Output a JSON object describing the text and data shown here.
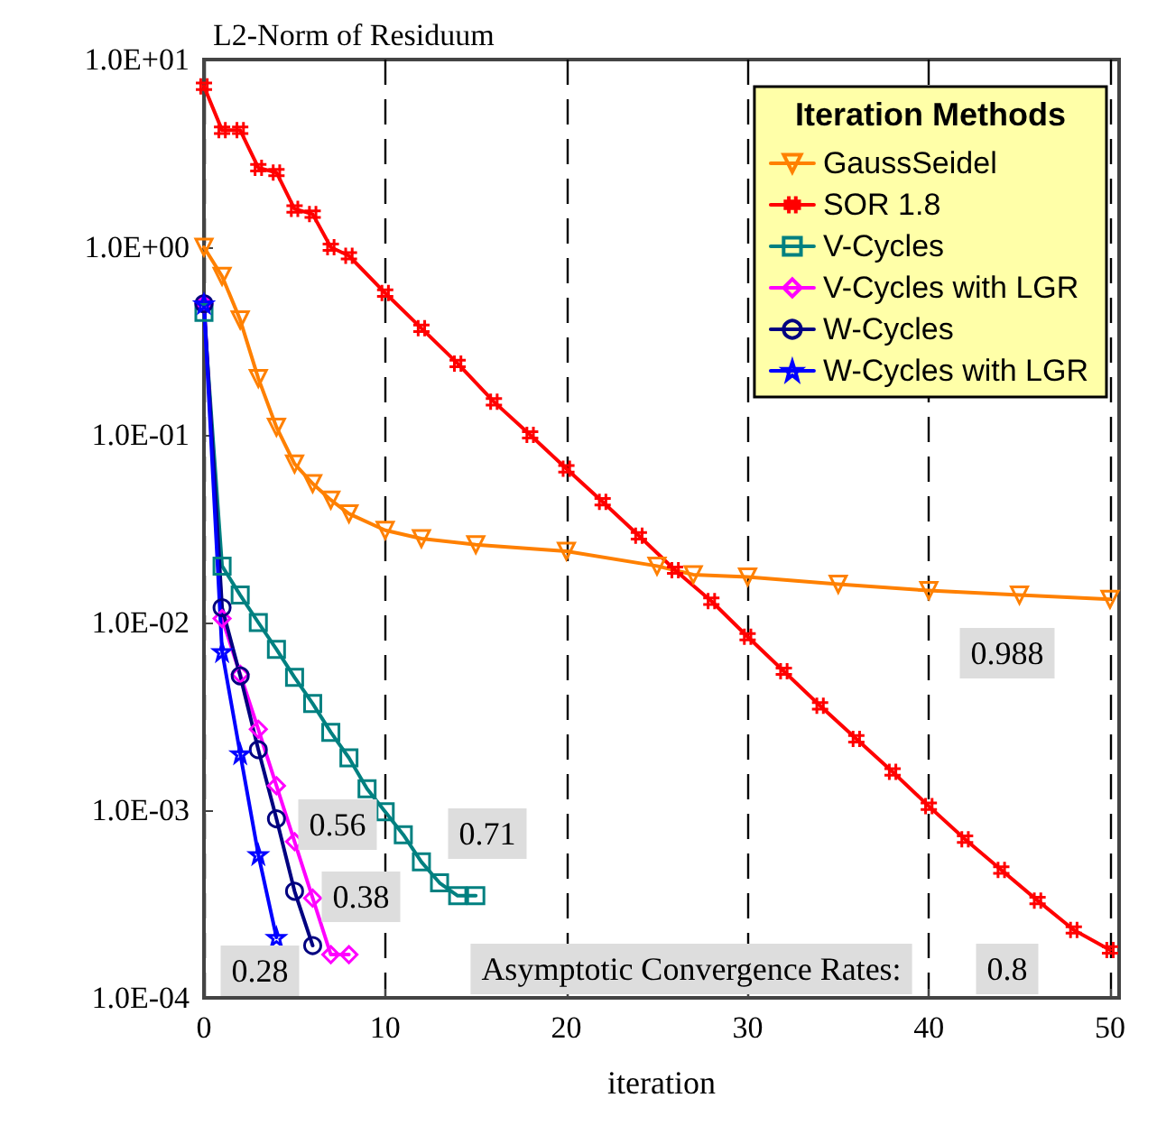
{
  "chart_data": {
    "type": "line",
    "title": "L2-Norm of Residuum",
    "xlabel": "iteration",
    "legend_title": "Iteration Methods",
    "xlim": [
      0,
      50.5
    ],
    "xticks": [
      0,
      10,
      20,
      30,
      40,
      50
    ],
    "ylim": [
      0.0001,
      10
    ],
    "log": "y",
    "yticks": [
      {
        "value": 0.0001,
        "label": "1.0E-04"
      },
      {
        "value": 0.001,
        "label": "1.0E-03"
      },
      {
        "value": 0.01,
        "label": "1.0E-02"
      },
      {
        "value": 0.1,
        "label": "1.0E-01"
      },
      {
        "value": 1,
        "label": "1.0E+00"
      },
      {
        "value": 10,
        "label": "1.0E+01"
      }
    ],
    "grid": "x",
    "legend": "top right",
    "series": [
      {
        "name": "GaussSeidel",
        "color": "#ff8000",
        "marker": "triangle",
        "x": [
          0,
          1,
          2,
          3,
          4,
          5,
          6,
          7,
          8,
          10,
          12,
          15,
          20,
          25,
          27,
          30,
          35,
          40,
          45,
          50
        ],
        "values": [
          1.0,
          0.7,
          0.41,
          0.2,
          0.11,
          0.07,
          0.055,
          0.045,
          0.038,
          0.031,
          0.028,
          0.026,
          0.024,
          0.02,
          0.018,
          0.0175,
          0.016,
          0.0148,
          0.014,
          0.0133
        ]
      },
      {
        "name": "SOR 1.8",
        "color": "#ff0000",
        "marker": "cross",
        "x": [
          0,
          1,
          2,
          3,
          4,
          5,
          6,
          7,
          8,
          10,
          12,
          14,
          16,
          18,
          20,
          22,
          24,
          26,
          28,
          30,
          32,
          34,
          36,
          38,
          40,
          42,
          44,
          46,
          48,
          50
        ],
        "values": [
          7.2,
          4.2,
          4.2,
          2.65,
          2.5,
          1.6,
          1.5,
          1.0,
          0.9,
          0.57,
          0.37,
          0.24,
          0.15,
          0.1,
          0.066,
          0.044,
          0.029,
          0.019,
          0.013,
          0.0084,
          0.0055,
          0.0036,
          0.0024,
          0.0016,
          0.00105,
          0.0007,
          0.00048,
          0.00033,
          0.00023,
          0.00018
        ]
      },
      {
        "name": "V-Cycles",
        "color": "#008080",
        "marker": "square",
        "x": [
          0,
          1,
          2,
          3,
          4,
          5,
          6,
          7,
          8,
          9,
          10,
          11,
          12,
          13,
          14,
          15
        ],
        "values": [
          0.45,
          0.02,
          0.014,
          0.01,
          0.0072,
          0.0051,
          0.0037,
          0.0026,
          0.0019,
          0.0013,
          0.00098,
          0.00074,
          0.00053,
          0.00041,
          0.00035,
          0.00035
        ]
      },
      {
        "name": "V-Cycles with LGR",
        "color": "#ff00ff",
        "marker": "diamond",
        "x": [
          0,
          1,
          2,
          3,
          4,
          5,
          6,
          7,
          8
        ],
        "values": [
          0.5,
          0.0105,
          0.0053,
          0.0027,
          0.00135,
          0.00068,
          0.00034,
          0.00017,
          0.00017
        ]
      },
      {
        "name": "W-Cycles",
        "color": "#000080",
        "marker": "circle",
        "x": [
          0,
          1,
          2,
          3,
          4,
          5,
          6
        ],
        "values": [
          0.5,
          0.012,
          0.0052,
          0.0021,
          0.0009,
          0.00037,
          0.00019
        ]
      },
      {
        "name": "W-Cycles with LGR",
        "color": "#0000ff",
        "marker": "star",
        "x": [
          0,
          1,
          2,
          3,
          4
        ],
        "values": [
          0.5,
          0.007,
          0.002,
          0.00058,
          0.00021
        ]
      }
    ],
    "annotations": [
      "0.988",
      "Asymptotic Convergence Rates:",
      "0.8",
      "0.56",
      "0.71",
      "0.38",
      "0.28"
    ]
  }
}
